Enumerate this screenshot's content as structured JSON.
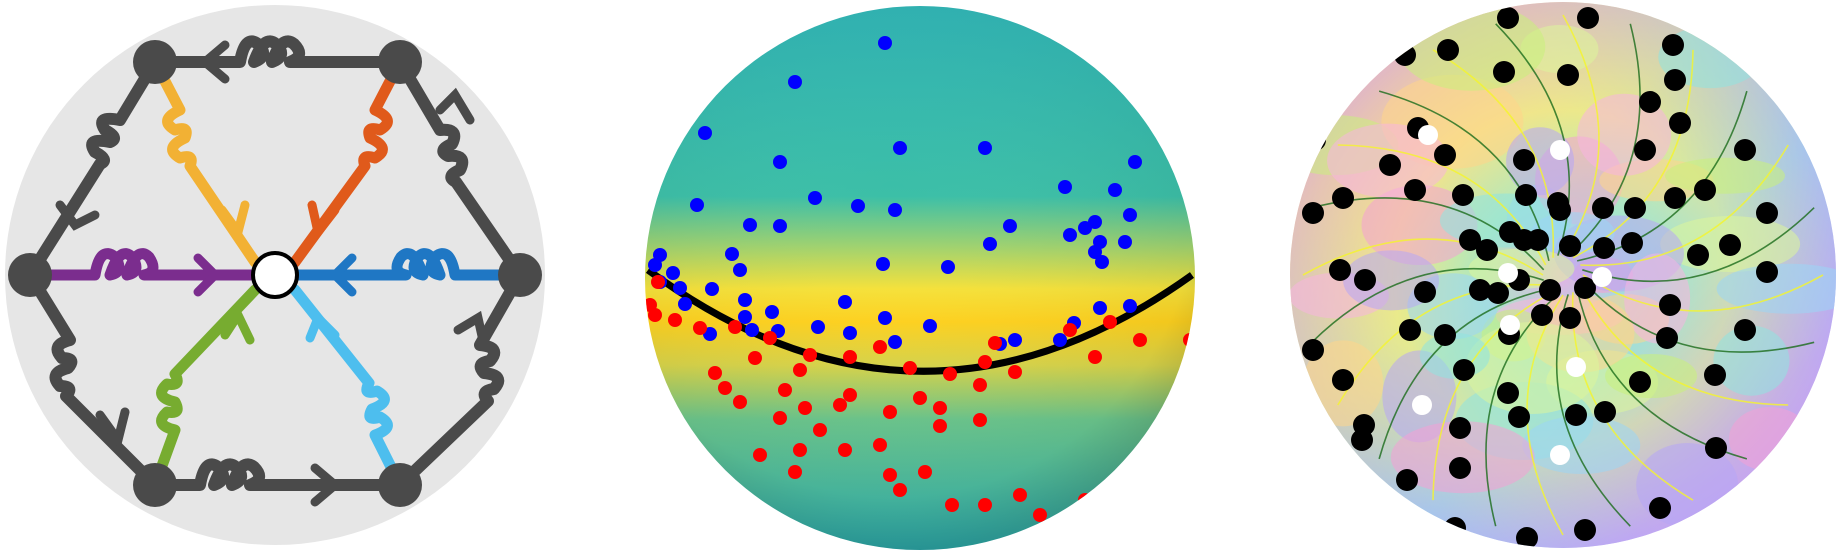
{
  "figure": {
    "panels": [
      {
        "id": "a",
        "kind": "hexagonal gluon diagram",
        "background": "#e6e6e6",
        "edge_color": "#4a4a4a",
        "spoke_colors": {
          "purple": "#7b2d8e",
          "blue": "#1f77c4",
          "yellow": "#f2b134",
          "orange": "#e05a1b",
          "green": "#77ac30",
          "cyan": "#4dbeee"
        },
        "center_vertex": "open-circle",
        "outer_vertices": "filled-dark"
      },
      {
        "id": "b",
        "kind": "sphere with points",
        "point_colors": {
          "upper": "#0000ff",
          "lower": "#ff0000"
        },
        "band_colors": [
          "#3bbfad",
          "#f0e442",
          "#ffd21f"
        ],
        "equator_line": "#000000"
      },
      {
        "id": "c",
        "kind": "phase portrait disk",
        "zeros_color": "#000000",
        "poles_color": "#ffffff",
        "stream_colors": [
          "#1a6b1a",
          "#f5f52a"
        ]
      }
    ]
  }
}
